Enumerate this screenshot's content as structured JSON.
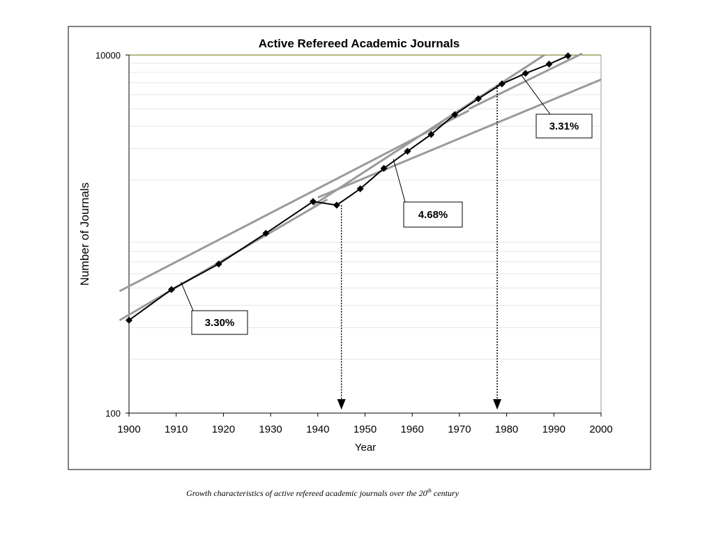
{
  "chart_data": {
    "type": "scatter",
    "title": "Active Refereed Academic Journals",
    "xlabel": "Year",
    "ylabel": "Number of Journals",
    "xlim": [
      1900,
      2000
    ],
    "ylim": [
      100,
      10000
    ],
    "y_scale": "log",
    "x_ticks": [
      "1900",
      "1910",
      "1920",
      "1930",
      "1940",
      "1950",
      "1960",
      "1970",
      "1980",
      "1990",
      "2000"
    ],
    "y_ticks": [
      "100",
      "10000"
    ],
    "grid": "horizontal minor lines",
    "series": [
      {
        "points": [
          [
            1900,
            330
          ],
          [
            1909,
            490
          ],
          [
            1919,
            680
          ],
          [
            1929,
            1010
          ],
          [
            1939,
            1520
          ],
          [
            1944,
            1450
          ],
          [
            1949,
            1790
          ],
          [
            1954,
            2330
          ],
          [
            1959,
            2900
          ],
          [
            1964,
            3600
          ],
          [
            1969,
            4650
          ],
          [
            1974,
            5700
          ],
          [
            1979,
            6900
          ],
          [
            1984,
            7900
          ],
          [
            1989,
            8900
          ],
          [
            1993,
            9900
          ]
        ]
      }
    ],
    "trend_lines": [
      {
        "from": [
          1898,
          330
        ],
        "to": [
          1942,
          1560
        ]
      },
      {
        "from": [
          1939,
          1450
        ],
        "to": [
          1988,
          10000
        ]
      },
      {
        "from": [
          1940,
          1600
        ],
        "to": [
          2000,
          7300
        ]
      },
      {
        "from": [
          1898,
          480
        ],
        "to": [
          1972,
          4900
        ]
      },
      {
        "from": [
          1972,
          5000
        ],
        "to": [
          1996,
          10200
        ]
      }
    ],
    "annotations": [
      {
        "label": "3.30%",
        "points_to": [
          1911,
          540
        ]
      },
      {
        "label": "4.68%",
        "points_to": [
          1956,
          2620
        ]
      },
      {
        "label": "3.31%",
        "points_to": [
          1983,
          7800
        ]
      }
    ],
    "markers": [
      {
        "year": 1945,
        "from_value": 1450
      },
      {
        "year": 1978,
        "from_value": 6800
      }
    ]
  },
  "caption": {
    "text_before": "Growth characteristics of active refereed academic journals over the 20",
    "superscript": "th",
    "text_after": " century"
  }
}
